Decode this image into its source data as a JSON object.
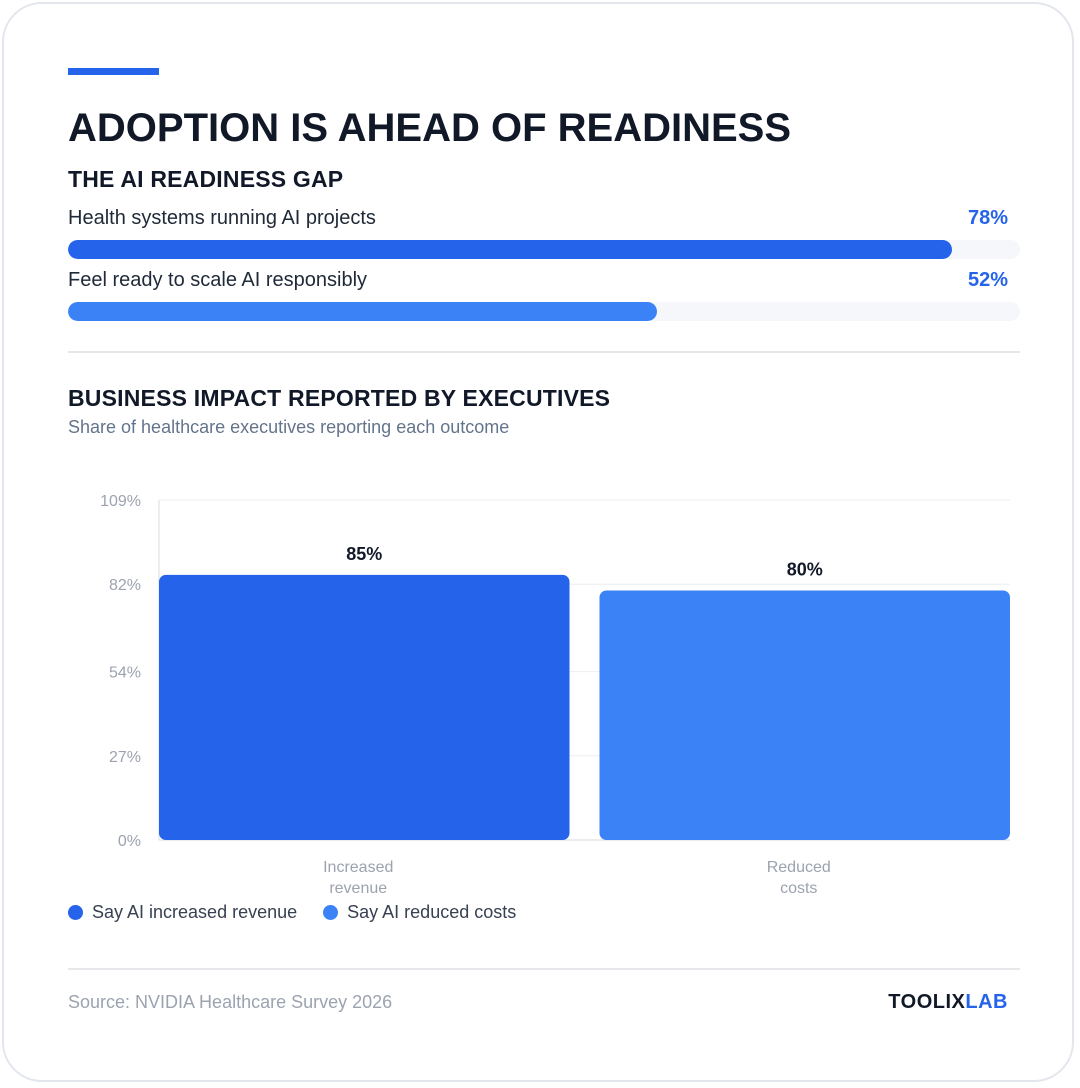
{
  "header": {
    "title": "ADOPTION IS AHEAD OF READINESS"
  },
  "readiness": {
    "title": "THE AI READINESS GAP",
    "metrics": [
      {
        "label": "Health systems running AI projects",
        "value_text": "78%",
        "value": 78,
        "color": "#2563eb"
      },
      {
        "label": "Feel ready to scale AI responsibly",
        "value_text": "52%",
        "value": 52,
        "color": "#3b82f6"
      }
    ]
  },
  "impact": {
    "title": "BUSINESS IMPACT REPORTED BY EXECUTIVES",
    "subtitle": "Share of healthcare executives reporting each outcome"
  },
  "chart_data": {
    "type": "bar",
    "categories": [
      "Increased revenue",
      "Reduced costs"
    ],
    "category_lines": [
      [
        "Increased",
        "revenue"
      ],
      [
        "Reduced",
        "costs"
      ]
    ],
    "values": [
      85,
      80
    ],
    "value_labels": [
      "85%",
      "80%"
    ],
    "colors": [
      "#2563eb",
      "#3b82f6"
    ],
    "ylim": [
      0,
      109
    ],
    "yticks": [
      0,
      27,
      54,
      82,
      109
    ],
    "ytick_labels": [
      "0%",
      "27%",
      "54%",
      "82%",
      "109%"
    ],
    "grid": true,
    "legend": {
      "placement": "bottom-left",
      "entries": [
        {
          "label": "Say AI increased revenue",
          "color": "#2563eb"
        },
        {
          "label": "Say AI reduced costs",
          "color": "#3b82f6"
        }
      ]
    }
  },
  "footer": {
    "source": "Source: NVIDIA Healthcare Survey 2026",
    "brand_main": "TOOLIX",
    "brand_accent": "LAB"
  }
}
